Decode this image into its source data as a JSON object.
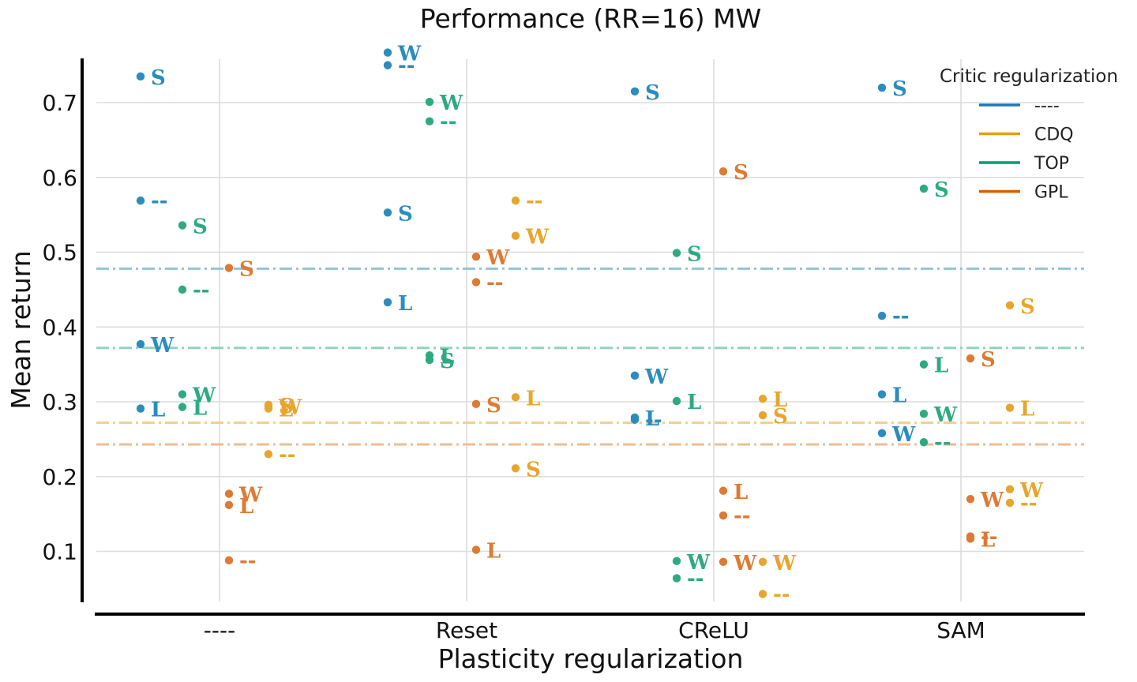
{
  "chart_data": {
    "type": "scatter",
    "title": "Performance (RR=16) MW",
    "xlabel": "Plasticity regularization",
    "ylabel": "Mean return",
    "categories": [
      "----",
      "Reset",
      "CReLU",
      "SAM"
    ],
    "ylim": [
      0.03,
      0.76
    ],
    "yticks": [
      "0.1",
      "0.2",
      "0.3",
      "0.4",
      "0.5",
      "0.6",
      "0.7"
    ],
    "grid": true,
    "legend": {
      "title": "Critic regularization",
      "placement": "top-right",
      "entries": [
        {
          "label": "----",
          "color": "#1f77b4"
        },
        {
          "label": "CDQ",
          "color": "#e69f00"
        },
        {
          "label": "TOP",
          "color": "#009e73"
        },
        {
          "label": "GPL",
          "color": "#d55e00"
        }
      ]
    },
    "reference_lines": [
      {
        "series": "----",
        "y": 0.478,
        "color": "#94c2dc"
      },
      {
        "series": "TOP",
        "y": 0.372,
        "color": "#8fd3be"
      },
      {
        "series": "CDQ",
        "y": 0.272,
        "color": "#f3d08c"
      },
      {
        "series": "GPL",
        "y": 0.243,
        "color": "#efbc94"
      }
    ],
    "series": [
      {
        "name": "----",
        "color": "#2b8cbe",
        "points": [
          {
            "category": "----",
            "label": "S",
            "y": 0.735
          },
          {
            "category": "----",
            "label": "--",
            "y": 0.569
          },
          {
            "category": "----",
            "label": "W",
            "y": 0.377
          },
          {
            "category": "----",
            "label": "L",
            "y": 0.291
          },
          {
            "category": "Reset",
            "label": "W",
            "y": 0.767
          },
          {
            "category": "Reset",
            "label": "--",
            "y": 0.75
          },
          {
            "category": "Reset",
            "label": "S",
            "y": 0.553
          },
          {
            "category": "Reset",
            "label": "L",
            "y": 0.433
          },
          {
            "category": "CReLU",
            "label": "S",
            "y": 0.715
          },
          {
            "category": "CReLU",
            "label": "W",
            "y": 0.335
          },
          {
            "category": "CReLU",
            "label": "L",
            "y": 0.279
          },
          {
            "category": "CReLU",
            "label": "--",
            "y": 0.276
          },
          {
            "category": "SAM",
            "label": "S",
            "y": 0.72
          },
          {
            "category": "SAM",
            "label": "--",
            "y": 0.415
          },
          {
            "category": "SAM",
            "label": "L",
            "y": 0.31
          },
          {
            "category": "SAM",
            "label": "W",
            "y": 0.258
          }
        ]
      },
      {
        "name": "TOP",
        "color": "#2eaa80",
        "points": [
          {
            "category": "----",
            "label": "S",
            "y": 0.536
          },
          {
            "category": "----",
            "label": "--",
            "y": 0.45
          },
          {
            "category": "----",
            "label": "W",
            "y": 0.31
          },
          {
            "category": "----",
            "label": "L",
            "y": 0.293
          },
          {
            "category": "Reset",
            "label": "W",
            "y": 0.701
          },
          {
            "category": "Reset",
            "label": "--",
            "y": 0.675
          },
          {
            "category": "Reset",
            "label": "L",
            "y": 0.362
          },
          {
            "category": "Reset",
            "label": "S",
            "y": 0.356
          },
          {
            "category": "CReLU",
            "label": "S",
            "y": 0.499
          },
          {
            "category": "CReLU",
            "label": "L",
            "y": 0.301
          },
          {
            "category": "CReLU",
            "label": "W",
            "y": 0.087
          },
          {
            "category": "CReLU",
            "label": "--",
            "y": 0.064
          },
          {
            "category": "SAM",
            "label": "S",
            "y": 0.585
          },
          {
            "category": "SAM",
            "label": "L",
            "y": 0.35
          },
          {
            "category": "SAM",
            "label": "W",
            "y": 0.284
          },
          {
            "category": "SAM",
            "label": "--",
            "y": 0.246
          }
        ]
      },
      {
        "name": "GPL",
        "color": "#dd7a33",
        "points": [
          {
            "category": "----",
            "label": "S",
            "y": 0.479
          },
          {
            "category": "----",
            "label": "W",
            "y": 0.177
          },
          {
            "category": "----",
            "label": "L",
            "y": 0.162
          },
          {
            "category": "----",
            "label": "--",
            "y": 0.088
          },
          {
            "category": "Reset",
            "label": "W",
            "y": 0.494
          },
          {
            "category": "Reset",
            "label": "--",
            "y": 0.46
          },
          {
            "category": "Reset",
            "label": "S",
            "y": 0.297
          },
          {
            "category": "Reset",
            "label": "L",
            "y": 0.102
          },
          {
            "category": "CReLU",
            "label": "S",
            "y": 0.608
          },
          {
            "category": "CReLU",
            "label": "L",
            "y": 0.181
          },
          {
            "category": "CReLU",
            "label": "--",
            "y": 0.148
          },
          {
            "category": "CReLU",
            "label": "W",
            "y": 0.086
          },
          {
            "category": "SAM",
            "label": "S",
            "y": 0.358
          },
          {
            "category": "SAM",
            "label": "W",
            "y": 0.17
          },
          {
            "category": "SAM",
            "label": "--",
            "y": 0.12
          },
          {
            "category": "SAM",
            "label": "L",
            "y": 0.117
          }
        ]
      },
      {
        "name": "CDQ",
        "color": "#e8a52e",
        "points": [
          {
            "category": "----",
            "label": "S",
            "y": 0.296
          },
          {
            "category": "----",
            "label": "W",
            "y": 0.294
          },
          {
            "category": "----",
            "label": "L",
            "y": 0.291
          },
          {
            "category": "----",
            "label": "--",
            "y": 0.23
          },
          {
            "category": "Reset",
            "label": "--",
            "y": 0.569
          },
          {
            "category": "Reset",
            "label": "W",
            "y": 0.522
          },
          {
            "category": "Reset",
            "label": "L",
            "y": 0.306
          },
          {
            "category": "Reset",
            "label": "S",
            "y": 0.211
          },
          {
            "category": "CReLU",
            "label": "L",
            "y": 0.304
          },
          {
            "category": "CReLU",
            "label": "S",
            "y": 0.282
          },
          {
            "category": "CReLU",
            "label": "W",
            "y": 0.086
          },
          {
            "category": "CReLU",
            "label": "--",
            "y": 0.043
          },
          {
            "category": "SAM",
            "label": "S",
            "y": 0.429
          },
          {
            "category": "SAM",
            "label": "L",
            "y": 0.292
          },
          {
            "category": "SAM",
            "label": "W",
            "y": 0.183
          },
          {
            "category": "SAM",
            "label": "--",
            "y": 0.165
          }
        ]
      }
    ]
  }
}
